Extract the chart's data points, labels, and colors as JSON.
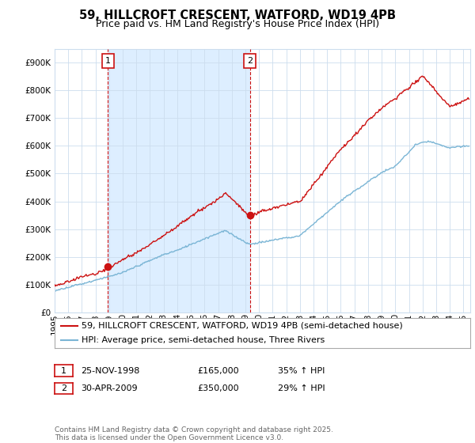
{
  "title": "59, HILLCROFT CRESCENT, WATFORD, WD19 4PB",
  "subtitle": "Price paid vs. HM Land Registry's House Price Index (HPI)",
  "ytick_values": [
    0,
    100000,
    200000,
    300000,
    400000,
    500000,
    600000,
    700000,
    800000,
    900000
  ],
  "ylim": [
    0,
    950000
  ],
  "xlim_start": 1995.0,
  "xlim_end": 2025.5,
  "xticks": [
    1995,
    1996,
    1997,
    1998,
    1999,
    2000,
    2001,
    2002,
    2003,
    2004,
    2005,
    2006,
    2007,
    2008,
    2009,
    2010,
    2011,
    2012,
    2013,
    2014,
    2015,
    2016,
    2017,
    2018,
    2019,
    2020,
    2021,
    2022,
    2023,
    2024,
    2025
  ],
  "hpi_color": "#7ab5d5",
  "price_color": "#cc1111",
  "vline_color": "#cc1111",
  "shade_color": "#ddeeff",
  "sale1_x": 1998.9,
  "sale1_y": 165000,
  "sale2_x": 2009.33,
  "sale2_y": 350000,
  "legend_price_label": "59, HILLCROFT CRESCENT, WATFORD, WD19 4PB (semi-detached house)",
  "legend_hpi_label": "HPI: Average price, semi-detached house, Three Rivers",
  "table_row1": [
    "1",
    "25-NOV-1998",
    "£165,000",
    "35% ↑ HPI"
  ],
  "table_row2": [
    "2",
    "30-APR-2009",
    "£350,000",
    "29% ↑ HPI"
  ],
  "footnote": "Contains HM Land Registry data © Crown copyright and database right 2025.\nThis data is licensed under the Open Government Licence v3.0.",
  "bg_color": "#ffffff",
  "grid_color": "#ccddee",
  "title_fontsize": 10.5,
  "subtitle_fontsize": 9,
  "tick_fontsize": 7.5,
  "legend_fontsize": 8,
  "table_fontsize": 8,
  "footnote_fontsize": 6.5
}
